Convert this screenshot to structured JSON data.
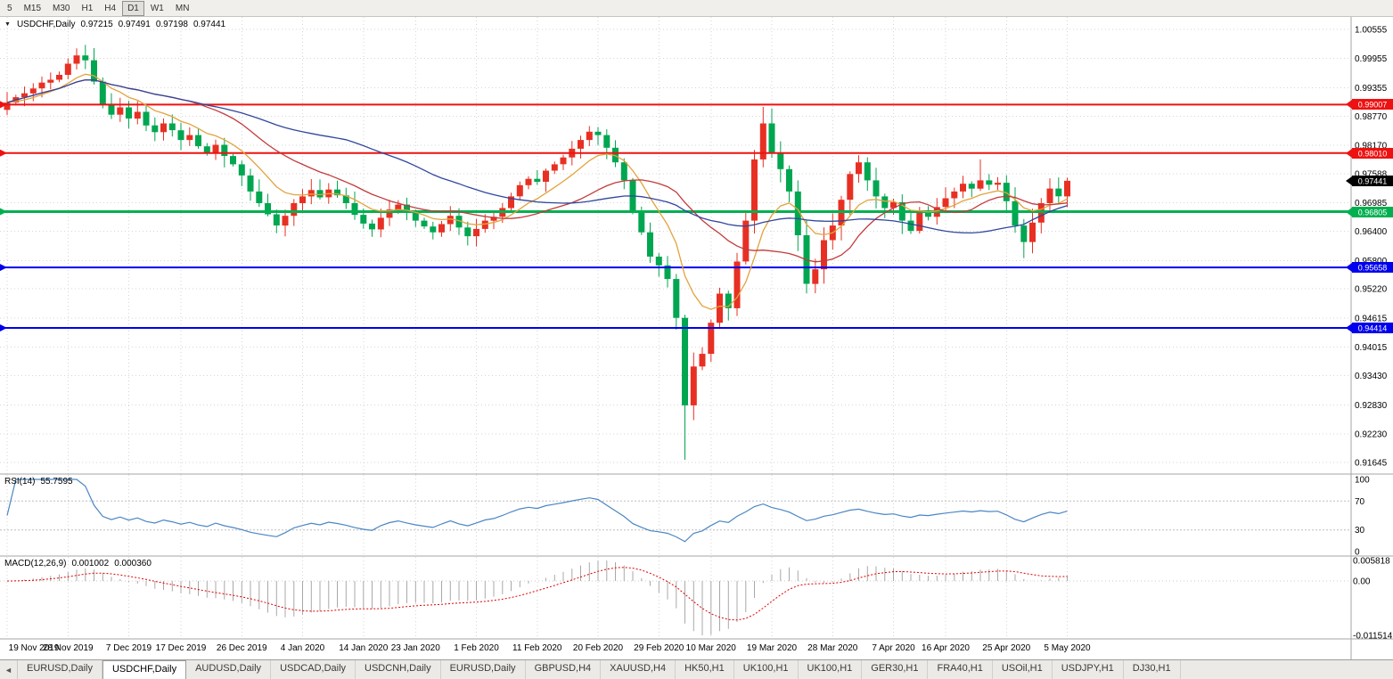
{
  "toolbar": {
    "timeframes": [
      "5",
      "M15",
      "M30",
      "H1",
      "H4",
      "D1",
      "W1",
      "MN"
    ],
    "active": "D1"
  },
  "symbol_header": {
    "dropdown_icon": "▼",
    "title": "USDCHF,Daily",
    "open": "0.97215",
    "high": "0.97491",
    "low": "0.97198",
    "close": "0.97441"
  },
  "price_axis": {
    "ticks": [
      "1.00555",
      "0.99955",
      "0.99355",
      "0.98770",
      "0.98170",
      "0.97588",
      "0.96985",
      "0.96400",
      "0.95800",
      "0.95220",
      "0.94615",
      "0.94015",
      "0.93430",
      "0.92830",
      "0.92230",
      "0.91645"
    ],
    "current_price": {
      "label": "0.97441",
      "bg": "#000000",
      "text_color": "#ffffff"
    }
  },
  "hlines": [
    {
      "label": "0.99007",
      "price": 0.99007,
      "color": "#ee1111",
      "width": 2
    },
    {
      "label": "0.98010",
      "price": 0.9801,
      "color": "#ee1111",
      "width": 2
    },
    {
      "label": "0.96805",
      "price": 0.96805,
      "color": "#00b050",
      "width": 3
    },
    {
      "label": "0.95658",
      "price": 0.95658,
      "color": "#0000ee",
      "width": 2
    },
    {
      "label": "0.94414",
      "price": 0.94414,
      "color": "#0000ee",
      "width": 2
    }
  ],
  "date_axis": {
    "labels": [
      "19 Nov 2019",
      "28 Nov 2019",
      "7 Dec 2019",
      "17 Dec 2019",
      "26 Dec 2019",
      "4 Jan 2020",
      "14 Jan 2020",
      "23 Jan 2020",
      "1 Feb 2020",
      "11 Feb 2020",
      "20 Feb 2020",
      "29 Feb 2020",
      "10 Mar 2020",
      "19 Mar 2020",
      "28 Mar 2020",
      "7 Apr 2020",
      "16 Apr 2020",
      "25 Apr 2020",
      "5 May 2020"
    ]
  },
  "chart_data": {
    "type": "candlestick",
    "symbol": "USDCHF",
    "timeframe": "Daily",
    "price_range": [
      0.91645,
      1.00555
    ],
    "first_open": 0.989,
    "closes": [
      0.9905,
      0.9916,
      0.9924,
      0.9934,
      0.9946,
      0.9952,
      0.9962,
      0.9985,
      1.0002,
      0.9992,
      0.9948,
      0.99,
      0.988,
      0.9895,
      0.9872,
      0.9886,
      0.9858,
      0.9844,
      0.9862,
      0.9848,
      0.9828,
      0.9838,
      0.9815,
      0.98,
      0.9818,
      0.9795,
      0.9778,
      0.9755,
      0.9722,
      0.9698,
      0.9675,
      0.9652,
      0.9672,
      0.9698,
      0.9712,
      0.9725,
      0.971,
      0.9726,
      0.9714,
      0.9698,
      0.9674,
      0.9656,
      0.9644,
      0.9668,
      0.9685,
      0.9695,
      0.9678,
      0.9662,
      0.965,
      0.9638,
      0.9655,
      0.9672,
      0.9648,
      0.963,
      0.9645,
      0.9662,
      0.967,
      0.9688,
      0.9712,
      0.9735,
      0.9748,
      0.9742,
      0.9765,
      0.9778,
      0.9792,
      0.981,
      0.9828,
      0.9845,
      0.9838,
      0.9812,
      0.9782,
      0.9745,
      0.9682,
      0.9638,
      0.9588,
      0.957,
      0.9542,
      0.9462,
      0.9282,
      0.9362,
      0.9388,
      0.9452,
      0.9512,
      0.9482,
      0.9578,
      0.9662,
      0.9788,
      0.9862,
      0.9802,
      0.9768,
      0.9722,
      0.9632,
      0.9532,
      0.9562,
      0.9622,
      0.9652,
      0.9705,
      0.9758,
      0.9782,
      0.9745,
      0.9712,
      0.9688,
      0.97,
      0.9662,
      0.9641,
      0.9678,
      0.967,
      0.969,
      0.9708,
      0.9722,
      0.9738,
      0.9728,
      0.9745,
      0.9736,
      0.974,
      0.9702,
      0.9652,
      0.9618,
      0.9658,
      0.9698,
      0.9728,
      0.9712,
      0.9744
    ],
    "high_overrides": {
      "8": 1.0008,
      "87": 0.9896,
      "112": 0.9788
    },
    "low_overrides": {
      "78": 0.917,
      "117": 0.9585
    },
    "colors": {
      "bull": "#e73023",
      "bear": "#00a650"
    },
    "moving_averages": [
      {
        "name": "ma-fast",
        "type": "ema",
        "period": 9,
        "color": "#e2a33d"
      },
      {
        "name": "ma-mid",
        "type": "sma",
        "period": 20,
        "color": "#c23b3b"
      },
      {
        "name": "ma-slow",
        "type": "sma",
        "period": 40,
        "color": "#31479e"
      }
    ]
  },
  "rsi": {
    "label": "RSI(14)",
    "value": "55.7595",
    "period": 14,
    "axis_labels": [
      "100",
      "70",
      "30",
      "0"
    ],
    "levels": [
      70,
      30
    ],
    "color": "#4a86c4"
  },
  "macd": {
    "label": "MACD(12,26,9)",
    "macd_value": "0.001002",
    "signal_value": "0.000360",
    "fast": 12,
    "slow": 26,
    "signal": 9,
    "axis_labels": [
      "0.005818",
      "0.00",
      "-0.011514"
    ],
    "histogram_color": "#a8a8a8",
    "signal_color": "#e00000"
  },
  "tabs": {
    "scroll_icon": "◄",
    "items": [
      "EURUSD,Daily",
      "USDCHF,Daily",
      "AUDUSD,Daily",
      "USDCAD,Daily",
      "USDCNH,Daily",
      "EURUSD,Daily",
      "GBPUSD,H4",
      "XAUUSD,H4",
      "HK50,H1",
      "UK100,H1",
      "UK100,H1",
      "GER30,H1",
      "FRA40,H1",
      "USOil,H1",
      "USDJPY,H1",
      "DJ30,H1"
    ],
    "active_index": 1
  }
}
